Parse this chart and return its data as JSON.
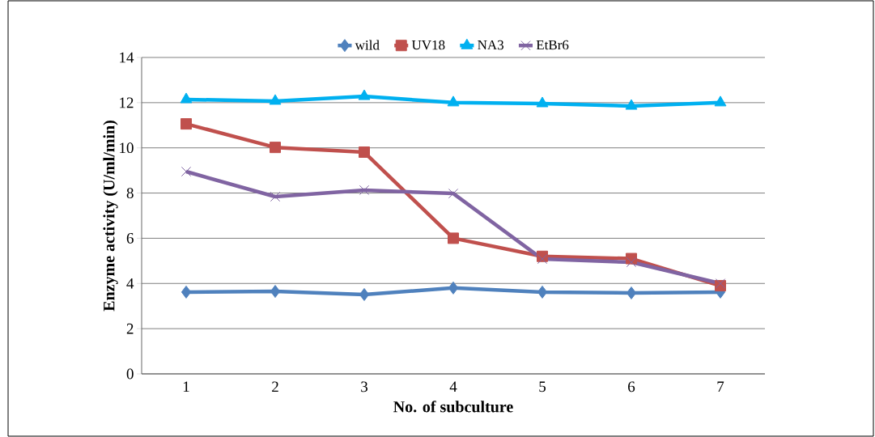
{
  "chart_data": {
    "type": "line",
    "xlabel": "No. of subculture",
    "ylabel": "Enzyme activity (U/ml/min)",
    "categories": [
      "1",
      "2",
      "3",
      "4",
      "5",
      "6",
      "7"
    ],
    "series": [
      {
        "name": "wild",
        "color": "#4f81bd",
        "marker": "diamond",
        "values": [
          3.62,
          3.65,
          3.51,
          3.8,
          3.62,
          3.58,
          3.62
        ]
      },
      {
        "name": "UV18",
        "color": "#c0504d",
        "marker": "square",
        "values": [
          11.06,
          10.02,
          9.81,
          6.0,
          5.2,
          5.1,
          3.9
        ]
      },
      {
        "name": "NA3",
        "color": "#00b0f0",
        "marker": "triangle",
        "values": [
          12.14,
          12.07,
          12.28,
          12.0,
          11.96,
          11.85,
          12.0
        ]
      },
      {
        "name": "EtBr6",
        "color": "#8064a2",
        "marker": "cross",
        "values": [
          8.95,
          7.84,
          8.13,
          7.98,
          5.08,
          4.94,
          4.0
        ]
      }
    ],
    "ylim": [
      0,
      14
    ],
    "yticks": [
      0,
      2,
      4,
      6,
      8,
      10,
      12,
      14
    ],
    "grid": "y",
    "legend": "top",
    "line_style": "solid"
  }
}
